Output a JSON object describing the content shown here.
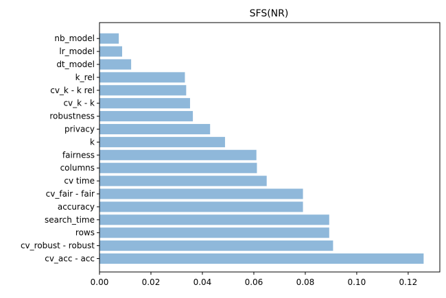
{
  "chart_data": {
    "type": "bar",
    "orientation": "horizontal",
    "title": "SFS(NR)",
    "xlabel": "",
    "ylabel": "",
    "xlim": [
      0,
      0.1323
    ],
    "xticks": [
      0.0,
      0.02,
      0.04,
      0.06,
      0.08,
      0.1,
      0.12
    ],
    "xtick_labels": [
      "0.00",
      "0.02",
      "0.04",
      "0.06",
      "0.08",
      "0.10",
      "0.12"
    ],
    "categories": [
      "cv_acc - acc",
      "cv_robust - robust",
      "rows",
      "search_time",
      "accuracy",
      "cv_fair - fair",
      "cv time",
      "columns",
      "fairness",
      "k",
      "privacy",
      "robustness",
      "cv_k - k",
      "cv_k - k rel",
      "k_rel",
      "dt_model",
      "lr_model",
      "nb_model"
    ],
    "values": [
      0.126,
      0.0908,
      0.0893,
      0.0893,
      0.0791,
      0.0791,
      0.065,
      0.0612,
      0.061,
      0.0488,
      0.043,
      0.0363,
      0.0352,
      0.0337,
      0.0332,
      0.0123,
      0.0088,
      0.0075
    ],
    "bar_color": "#8fb8da",
    "grid": false
  }
}
